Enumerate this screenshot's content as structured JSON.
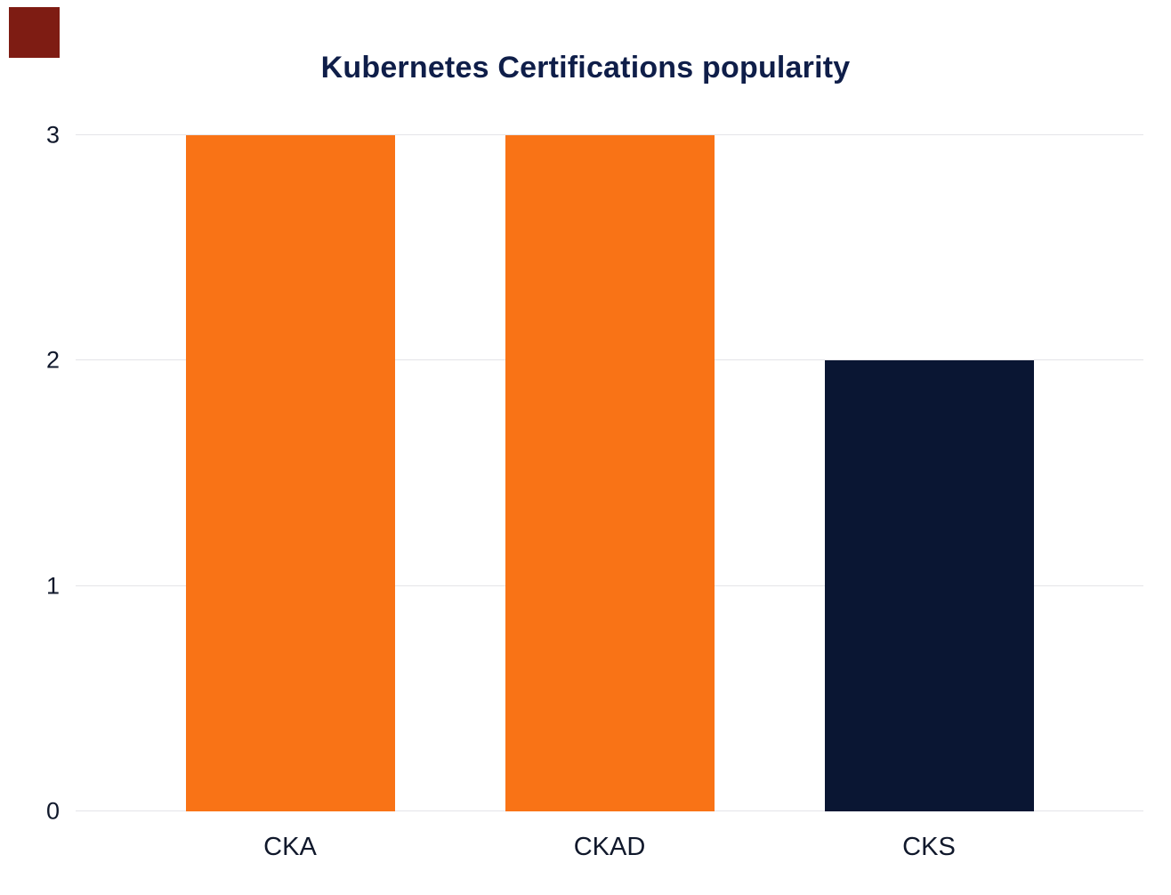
{
  "decor": {
    "corner_square_color": "#7E1C13"
  },
  "colors": {
    "title_text": "#0F1E49",
    "axis_text": "#10182B",
    "gridline": "#E4E4E8",
    "background": "#FFFFFF"
  },
  "chart_data": {
    "type": "bar",
    "title": "Kubernetes Certifications popularity",
    "categories": [
      "CKA",
      "CKAD",
      "CKS"
    ],
    "values": [
      3,
      3,
      2
    ],
    "bar_colors": [
      "#F97316",
      "#F97316",
      "#0A1633"
    ],
    "xlabel": "",
    "ylabel": "",
    "ylim": [
      0,
      3
    ],
    "yticks": [
      0,
      1,
      2,
      3
    ],
    "grid": true,
    "legend": "none"
  }
}
